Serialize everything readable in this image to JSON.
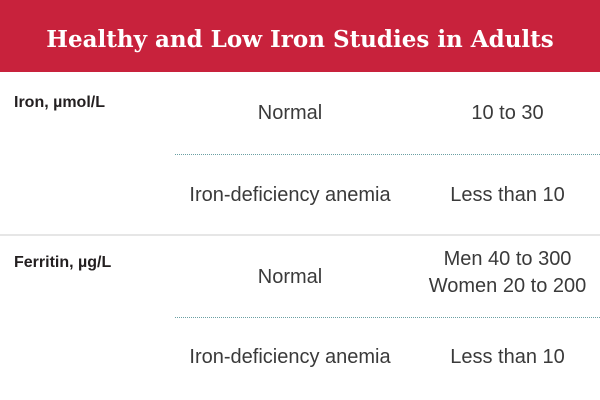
{
  "title": "Healthy and Low Iron Studies in Adults",
  "colors": {
    "header_bg": "#c8223c",
    "header_text": "#ffffff",
    "divider_dots": "#6aa0a3"
  },
  "sections": [
    {
      "label": "Iron, µmol/L",
      "rows": [
        {
          "condition": "Normal",
          "value": "10 to 30"
        },
        {
          "condition": "Iron-deficiency anemia",
          "value": "Less than 10"
        }
      ]
    },
    {
      "label": "Ferritin, µg/L",
      "rows": [
        {
          "condition": "Normal",
          "value_lines": [
            "Men 40 to 300",
            "Women 20 to 200"
          ]
        },
        {
          "condition": "Iron-deficiency anemia",
          "value": "Less than 10"
        }
      ]
    }
  ]
}
